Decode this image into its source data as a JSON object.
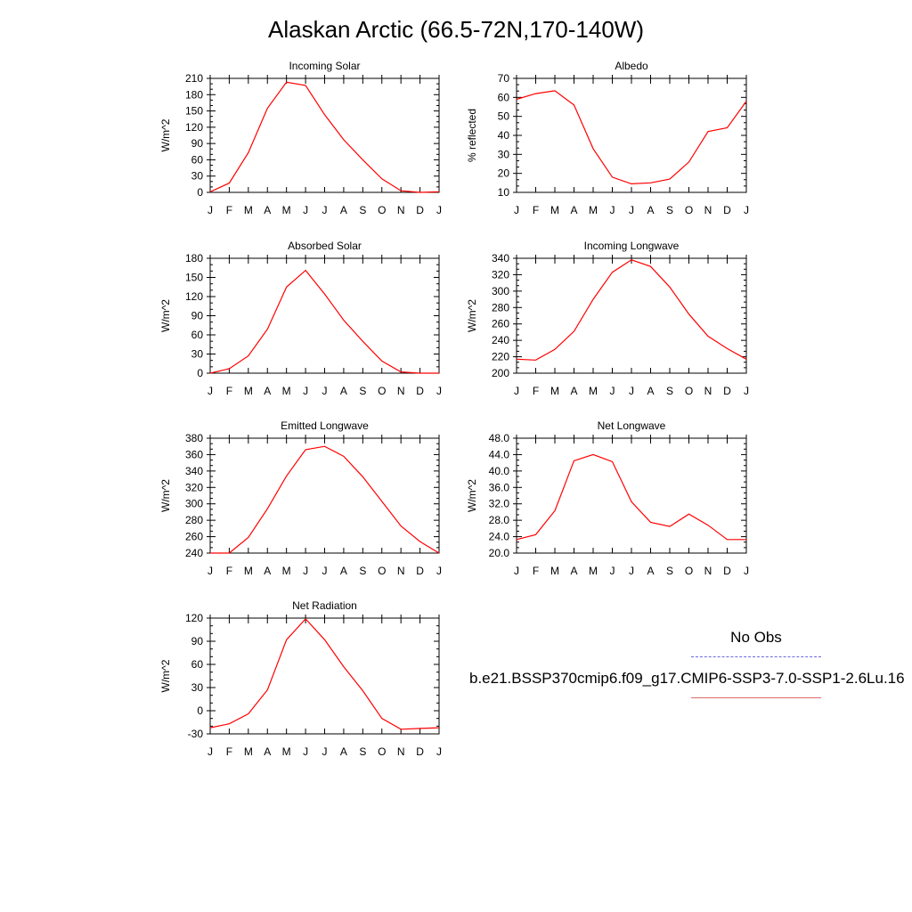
{
  "title": "Alaskan Arctic (66.5-72N,170-140W)",
  "legend": {
    "obs_label": "No Obs",
    "obs_color": "#6a6ae0",
    "model_label": "b.e21.BSSP370cmip6.f09_g17.CMIP6-SSP3-7.0-SSP1-2.6Lu.16",
    "model_color": "#e06a6a"
  },
  "chart_data": [
    {
      "type": "line",
      "title": "Incoming Solar",
      "ylabel": "W/m^2",
      "categories": [
        "J",
        "F",
        "M",
        "A",
        "M",
        "J",
        "J",
        "A",
        "S",
        "O",
        "N",
        "D",
        "J"
      ],
      "yticks": [
        "0",
        "30",
        "60",
        "90",
        "120",
        "150",
        "180",
        "210"
      ],
      "ylim": [
        0,
        210
      ],
      "series": [
        {
          "color": "#ff0000",
          "values": [
            1,
            17,
            73,
            155,
            203,
            197,
            143,
            97,
            60,
            25,
            3,
            0,
            1
          ]
        }
      ]
    },
    {
      "type": "line",
      "title": "Albedo",
      "ylabel": "% reflected",
      "categories": [
        "J",
        "F",
        "M",
        "A",
        "M",
        "J",
        "J",
        "A",
        "S",
        "O",
        "N",
        "D",
        "J"
      ],
      "yticks": [
        "10",
        "20",
        "30",
        "40",
        "50",
        "60",
        "70"
      ],
      "ylim": [
        10,
        70
      ],
      "series": [
        {
          "color": "#ff0000",
          "values": [
            59,
            62,
            63.5,
            56,
            33,
            18,
            14.5,
            15,
            17,
            26,
            42,
            44,
            58
          ]
        }
      ]
    },
    {
      "type": "line",
      "title": "Absorbed Solar",
      "ylabel": "W/m^2",
      "categories": [
        "J",
        "F",
        "M",
        "A",
        "M",
        "J",
        "J",
        "A",
        "S",
        "O",
        "N",
        "D",
        "J"
      ],
      "yticks": [
        "0",
        "30",
        "60",
        "90",
        "120",
        "150",
        "180"
      ],
      "ylim": [
        0,
        180
      ],
      "series": [
        {
          "color": "#ff0000",
          "values": [
            0,
            7,
            27,
            69,
            135,
            161,
            124,
            83,
            50,
            19,
            2,
            0,
            0
          ]
        }
      ]
    },
    {
      "type": "line",
      "title": "Incoming Longwave",
      "ylabel": "W/m^2",
      "categories": [
        "J",
        "F",
        "M",
        "A",
        "M",
        "J",
        "J",
        "A",
        "S",
        "O",
        "N",
        "D",
        "J"
      ],
      "yticks": [
        "200",
        "220",
        "240",
        "260",
        "280",
        "300",
        "320",
        "340"
      ],
      "ylim": [
        200,
        340
      ],
      "series": [
        {
          "color": "#ff0000",
          "values": [
            217,
            216,
            229,
            251,
            290,
            323,
            338,
            330,
            305,
            272,
            245,
            230,
            217
          ]
        }
      ]
    },
    {
      "type": "line",
      "title": "Emitted Longwave",
      "ylabel": "W/m^2",
      "categories": [
        "J",
        "F",
        "M",
        "A",
        "M",
        "J",
        "J",
        "A",
        "S",
        "O",
        "N",
        "D",
        "J"
      ],
      "yticks": [
        "240",
        "260",
        "280",
        "300",
        "320",
        "340",
        "360",
        "380"
      ],
      "ylim": [
        240,
        380
      ],
      "series": [
        {
          "color": "#ff0000",
          "values": [
            240,
            240,
            259,
            294,
            334,
            366,
            370,
            358,
            333,
            303,
            273,
            254,
            240
          ]
        }
      ]
    },
    {
      "type": "line",
      "title": "Net Longwave",
      "ylabel": "W/m^2",
      "categories": [
        "J",
        "F",
        "M",
        "A",
        "M",
        "J",
        "J",
        "A",
        "S",
        "O",
        "N",
        "D",
        "J"
      ],
      "yticks": [
        "20.0",
        "24.0",
        "28.0",
        "32.0",
        "36.0",
        "40.0",
        "44.0",
        "48.0"
      ],
      "ylim": [
        20,
        48
      ],
      "series": [
        {
          "color": "#ff0000",
          "values": [
            23.3,
            24.5,
            30.3,
            42.5,
            44,
            42.3,
            32.5,
            27.5,
            26.5,
            29.5,
            26.8,
            23.3,
            23.3
          ]
        }
      ]
    },
    {
      "type": "line",
      "title": "Net Radiation",
      "ylabel": "W/m^2",
      "categories": [
        "J",
        "F",
        "M",
        "A",
        "M",
        "J",
        "J",
        "A",
        "S",
        "O",
        "N",
        "D",
        "J"
      ],
      "yticks": [
        "-30",
        "0",
        "30",
        "60",
        "90",
        "120"
      ],
      "ylim": [
        -30,
        120
      ],
      "series": [
        {
          "color": "#ff0000",
          "values": [
            -22,
            -17,
            -4,
            27,
            92,
            119,
            92,
            57,
            26,
            -10,
            -24,
            -23,
            -22
          ]
        }
      ]
    }
  ]
}
